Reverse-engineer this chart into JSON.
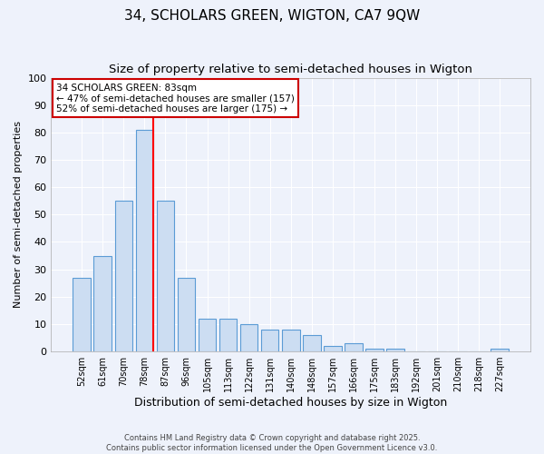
{
  "title1": "34, SCHOLARS GREEN, WIGTON, CA7 9QW",
  "title2": "Size of property relative to semi-detached houses in Wigton",
  "xlabel": "Distribution of semi-detached houses by size in Wigton",
  "ylabel": "Number of semi-detached properties",
  "categories": [
    "52sqm",
    "61sqm",
    "70sqm",
    "78sqm",
    "87sqm",
    "96sqm",
    "105sqm",
    "113sqm",
    "122sqm",
    "131sqm",
    "140sqm",
    "148sqm",
    "157sqm",
    "166sqm",
    "175sqm",
    "183sqm",
    "192sqm",
    "201sqm",
    "210sqm",
    "218sqm",
    "227sqm"
  ],
  "values": [
    27,
    35,
    55,
    81,
    55,
    27,
    12,
    12,
    10,
    8,
    8,
    6,
    2,
    3,
    1,
    1,
    0,
    0,
    0,
    0,
    1
  ],
  "bar_color": "#ccddf2",
  "bar_edge_color": "#5b9bd5",
  "red_line_index": 3,
  "annotation_text": "34 SCHOLARS GREEN: 83sqm\n← 47% of semi-detached houses are smaller (157)\n52% of semi-detached houses are larger (175) →",
  "annotation_box_color": "#ffffff",
  "annotation_box_edge": "#cc0000",
  "ylim": [
    0,
    100
  ],
  "yticks": [
    0,
    10,
    20,
    30,
    40,
    50,
    60,
    70,
    80,
    90,
    100
  ],
  "footer1": "Contains HM Land Registry data © Crown copyright and database right 2025.",
  "footer2": "Contains public sector information licensed under the Open Government Licence v3.0.",
  "bg_color": "#eef2fb",
  "grid_color": "#ffffff",
  "title_fontsize": 11,
  "subtitle_fontsize": 9.5
}
